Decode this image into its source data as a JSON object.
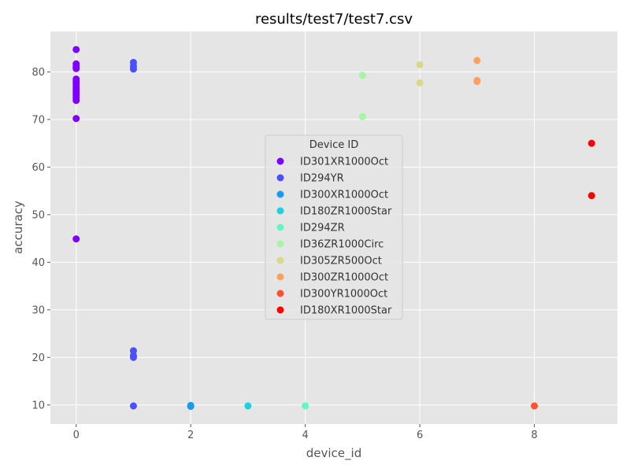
{
  "chart_data": {
    "type": "scatter",
    "title": "results/test7/test7.csv",
    "xlabel": "device_id",
    "ylabel": "accuracy",
    "xlim": [
      -0.45,
      9.45
    ],
    "ylim": [
      6,
      88.5
    ],
    "xticks": [
      0,
      2,
      4,
      6,
      8
    ],
    "yticks": [
      10,
      20,
      30,
      40,
      50,
      60,
      70,
      80
    ],
    "grid": true,
    "legend": {
      "title": "Device ID",
      "placement": "center"
    },
    "series": [
      {
        "name": "ID301XR1000Oct",
        "color": "#8000ff",
        "x": [
          0,
          0,
          0,
          0,
          0,
          0,
          0,
          0,
          0,
          0,
          0,
          0,
          0,
          0,
          0,
          0,
          0
        ],
        "y": [
          84.7,
          81.7,
          81.2,
          80.7,
          78.5,
          78.0,
          77.5,
          77.0,
          76.5,
          76.0,
          75.5,
          75.0,
          74.5,
          74.0,
          70.2,
          44.9,
          80.9
        ]
      },
      {
        "name": "ID294YR",
        "color": "#4c50fc",
        "x": [
          1,
          1,
          1,
          1,
          1,
          1,
          1
        ],
        "y": [
          82.0,
          81.2,
          80.6,
          21.4,
          20.4,
          20.0,
          9.8
        ]
      },
      {
        "name": "ID300XR1000Oct",
        "color": "#169bf0",
        "x": [
          2,
          2
        ],
        "y": [
          9.9,
          9.7
        ]
      },
      {
        "name": "ID180ZR1000Star",
        "color": "#1ed1e0",
        "x": [
          3
        ],
        "y": [
          9.8
        ]
      },
      {
        "name": "ID294ZR",
        "color": "#62f5c5",
        "x": [
          4
        ],
        "y": [
          9.8
        ]
      },
      {
        "name": "ID36ZR1000Circ",
        "color": "#a6f5a5",
        "x": [
          5,
          5
        ],
        "y": [
          79.3,
          70.6
        ]
      },
      {
        "name": "ID305ZR500Oct",
        "color": "#d8d88a",
        "x": [
          6,
          6
        ],
        "y": [
          81.5,
          77.7
        ]
      },
      {
        "name": "ID300ZR1000Oct",
        "color": "#ffa060",
        "x": [
          7,
          7,
          7
        ],
        "y": [
          82.4,
          78.2,
          78.0
        ]
      },
      {
        "name": "ID300YR1000Oct",
        "color": "#ff5030",
        "x": [
          8
        ],
        "y": [
          9.8
        ]
      },
      {
        "name": "ID180XR1000Star",
        "color": "#ff0000",
        "x": [
          9,
          9
        ],
        "y": [
          65.0,
          54.0
        ]
      }
    ]
  }
}
